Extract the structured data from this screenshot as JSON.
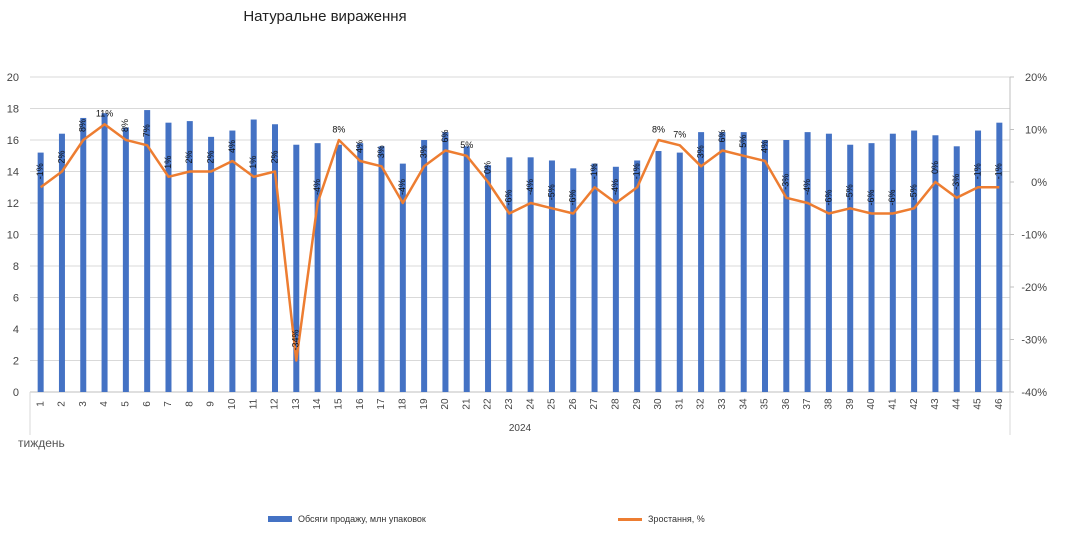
{
  "chart_data": {
    "type": "bar+line",
    "title": "Натуральне вираження",
    "xlabel": "тиждень",
    "x_group_label": "2024",
    "categories": [
      "1",
      "2",
      "3",
      "4",
      "5",
      "6",
      "7",
      "8",
      "9",
      "10",
      "11",
      "12",
      "13",
      "14",
      "15",
      "16",
      "17",
      "18",
      "19",
      "20",
      "21",
      "22",
      "23",
      "24",
      "25",
      "26",
      "27",
      "28",
      "29",
      "30",
      "31",
      "32",
      "33",
      "34",
      "35",
      "36",
      "37",
      "38",
      "39",
      "40",
      "41",
      "42",
      "43",
      "44",
      "45",
      "46"
    ],
    "series": [
      {
        "name": "Обсяги продажу, млн упаковок",
        "kind": "bar",
        "axis": "left",
        "color": "#4472C4",
        "values": [
          15.2,
          16.4,
          17.4,
          17.7,
          16.8,
          17.9,
          17.1,
          17.2,
          16.2,
          16.6,
          17.3,
          17.0,
          15.7,
          15.8,
          15.7,
          15.8,
          15.6,
          14.5,
          16.0,
          16.5,
          15.6,
          14.4,
          14.9,
          14.9,
          14.7,
          14.2,
          14.5,
          14.3,
          14.7,
          15.3,
          15.2,
          16.5,
          16.5,
          16.5,
          16.0,
          16.0,
          16.5,
          16.4,
          15.7,
          15.8,
          16.4,
          16.6,
          16.3,
          15.6,
          16.6,
          17.1
        ]
      },
      {
        "name": "Зростання, %",
        "kind": "line",
        "axis": "right",
        "color": "#ED7D31",
        "values": [
          -1,
          2,
          8,
          11,
          8,
          7,
          1,
          2,
          2,
          4,
          1,
          2,
          -34,
          -4,
          8,
          4,
          3,
          -4,
          3,
          6,
          5,
          0,
          -6,
          -4,
          -5,
          -6,
          -1,
          -4,
          -1,
          8,
          7,
          3,
          6,
          5,
          4,
          -3,
          -4,
          -6,
          -5,
          -6,
          -6,
          -5,
          0,
          -3,
          -1,
          -1
        ],
        "labels": [
          "-1%",
          "2%",
          "8%",
          "11%",
          "8%",
          "7%",
          "1%",
          "2%",
          "2%",
          "4%",
          "1%",
          "2%",
          "-34%",
          "-4%",
          "8%",
          "4%",
          "3%",
          "-4%",
          "3%",
          "6%",
          "5%",
          "0%",
          "-6%",
          "-4%",
          "-5%",
          "-6%",
          "-1%",
          "-4%",
          "-1%",
          "8%",
          "7%",
          "3%",
          "6%",
          "5%",
          "4%",
          "-3%",
          "-4%",
          "-6%",
          "-5%",
          "-6%",
          "-6%",
          "-5%",
          "0%",
          "-3%",
          "-1%",
          "-1%"
        ]
      }
    ],
    "y_left": {
      "range": [
        0,
        20
      ],
      "ticks": [
        "0",
        "2",
        "4",
        "6",
        "8",
        "10",
        "12",
        "14",
        "16",
        "18",
        "20"
      ]
    },
    "y_right": {
      "range": [
        -40,
        20
      ],
      "ticks": [
        "-40%",
        "-30%",
        "-20%",
        "-10%",
        "0%",
        "10%",
        "20%"
      ]
    },
    "grid": true,
    "legend_position": "bottom"
  }
}
